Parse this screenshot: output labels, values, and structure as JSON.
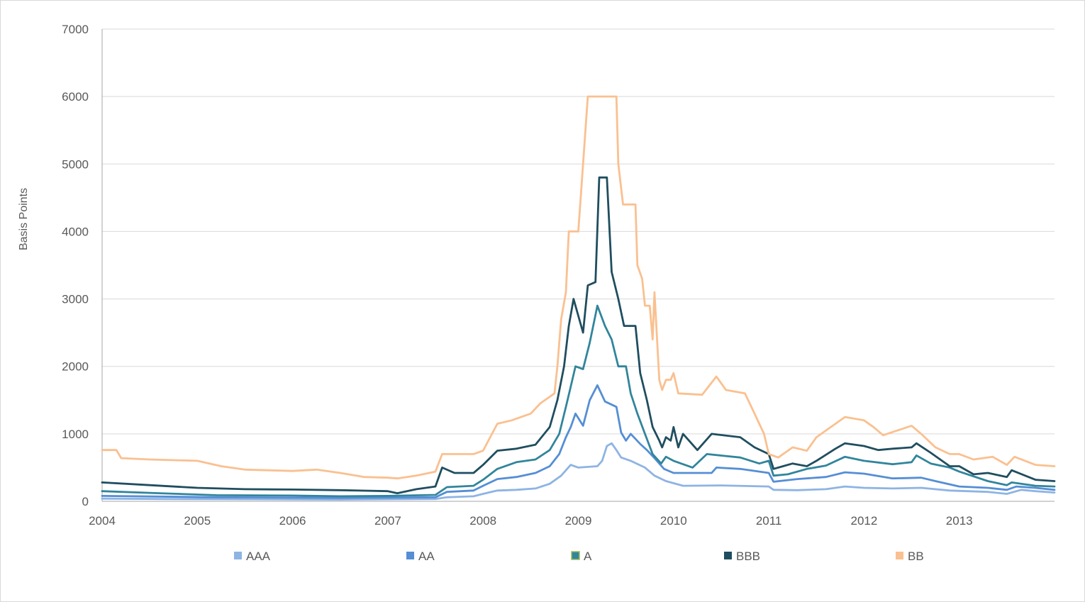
{
  "chart_data": {
    "type": "line",
    "title": "",
    "xlabel": "",
    "ylabel": "Basis Points",
    "xlim": [
      2004,
      2014
    ],
    "ylim": [
      0,
      7000
    ],
    "yticks": [
      0,
      1000,
      2000,
      3000,
      4000,
      5000,
      6000,
      7000
    ],
    "xtick_labels": [
      "2004",
      "2005",
      "2006",
      "2007",
      "2008",
      "2009",
      "2010",
      "2011",
      "2012",
      "2013"
    ],
    "grid": "horizontal",
    "legend_position": "bottom",
    "series": [
      {
        "name": "AAA",
        "color": "#8eb4e3",
        "points": [
          [
            2004.0,
            40
          ],
          [
            2004.6,
            35
          ],
          [
            2005.5,
            30
          ],
          [
            2006.5,
            25
          ],
          [
            2007.0,
            30
          ],
          [
            2007.5,
            35
          ],
          [
            2007.62,
            60
          ],
          [
            2007.9,
            75
          ],
          [
            2008.0,
            110
          ],
          [
            2008.15,
            160
          ],
          [
            2008.35,
            170
          ],
          [
            2008.55,
            190
          ],
          [
            2008.7,
            260
          ],
          [
            2008.82,
            380
          ],
          [
            2008.92,
            540
          ],
          [
            2009.0,
            500
          ],
          [
            2009.2,
            520
          ],
          [
            2009.25,
            600
          ],
          [
            2009.3,
            820
          ],
          [
            2009.35,
            860
          ],
          [
            2009.4,
            760
          ],
          [
            2009.45,
            650
          ],
          [
            2009.55,
            600
          ],
          [
            2009.7,
            500
          ],
          [
            2009.8,
            380
          ],
          [
            2009.92,
            300
          ],
          [
            2010.1,
            230
          ],
          [
            2010.5,
            235
          ],
          [
            2011.0,
            220
          ],
          [
            2011.05,
            170
          ],
          [
            2011.3,
            165
          ],
          [
            2011.6,
            180
          ],
          [
            2011.8,
            220
          ],
          [
            2012.0,
            200
          ],
          [
            2012.3,
            190
          ],
          [
            2012.6,
            200
          ],
          [
            2012.9,
            160
          ],
          [
            2013.3,
            140
          ],
          [
            2013.5,
            110
          ],
          [
            2013.65,
            170
          ],
          [
            2013.8,
            150
          ],
          [
            2014.0,
            130
          ]
        ]
      },
      {
        "name": "AA",
        "color": "#558ed5",
        "points": [
          [
            2004.0,
            80
          ],
          [
            2004.6,
            70
          ],
          [
            2005.2,
            60
          ],
          [
            2006.0,
            55
          ],
          [
            2006.5,
            50
          ],
          [
            2007.0,
            55
          ],
          [
            2007.5,
            60
          ],
          [
            2007.62,
            140
          ],
          [
            2007.9,
            160
          ],
          [
            2008.0,
            230
          ],
          [
            2008.15,
            330
          ],
          [
            2008.35,
            360
          ],
          [
            2008.55,
            420
          ],
          [
            2008.7,
            520
          ],
          [
            2008.8,
            700
          ],
          [
            2008.87,
            950
          ],
          [
            2008.92,
            1100
          ],
          [
            2008.97,
            1300
          ],
          [
            2009.05,
            1120
          ],
          [
            2009.12,
            1500
          ],
          [
            2009.2,
            1720
          ],
          [
            2009.28,
            1480
          ],
          [
            2009.4,
            1400
          ],
          [
            2009.45,
            1020
          ],
          [
            2009.5,
            900
          ],
          [
            2009.55,
            1000
          ],
          [
            2009.65,
            850
          ],
          [
            2009.72,
            760
          ],
          [
            2009.8,
            640
          ],
          [
            2009.9,
            480
          ],
          [
            2010.0,
            420
          ],
          [
            2010.4,
            420
          ],
          [
            2010.45,
            500
          ],
          [
            2010.7,
            480
          ],
          [
            2011.0,
            420
          ],
          [
            2011.05,
            290
          ],
          [
            2011.3,
            330
          ],
          [
            2011.6,
            360
          ],
          [
            2011.8,
            430
          ],
          [
            2012.0,
            410
          ],
          [
            2012.3,
            340
          ],
          [
            2012.6,
            350
          ],
          [
            2012.75,
            300
          ],
          [
            2013.0,
            220
          ],
          [
            2013.3,
            200
          ],
          [
            2013.5,
            170
          ],
          [
            2013.6,
            220
          ],
          [
            2013.8,
            200
          ],
          [
            2014.0,
            170
          ]
        ]
      },
      {
        "name": "A",
        "color": "#31859c",
        "points": [
          [
            2004.0,
            150
          ],
          [
            2004.6,
            120
          ],
          [
            2005.2,
            90
          ],
          [
            2006.0,
            85
          ],
          [
            2006.5,
            75
          ],
          [
            2007.0,
            80
          ],
          [
            2007.5,
            95
          ],
          [
            2007.62,
            210
          ],
          [
            2007.9,
            230
          ],
          [
            2008.0,
            320
          ],
          [
            2008.15,
            480
          ],
          [
            2008.35,
            580
          ],
          [
            2008.55,
            620
          ],
          [
            2008.7,
            760
          ],
          [
            2008.8,
            1000
          ],
          [
            2008.87,
            1400
          ],
          [
            2008.92,
            1700
          ],
          [
            2008.97,
            2000
          ],
          [
            2009.05,
            1960
          ],
          [
            2009.12,
            2350
          ],
          [
            2009.2,
            2900
          ],
          [
            2009.28,
            2600
          ],
          [
            2009.35,
            2400
          ],
          [
            2009.42,
            2000
          ],
          [
            2009.5,
            2000
          ],
          [
            2009.55,
            1600
          ],
          [
            2009.62,
            1300
          ],
          [
            2009.7,
            1000
          ],
          [
            2009.78,
            700
          ],
          [
            2009.87,
            560
          ],
          [
            2009.92,
            660
          ],
          [
            2010.0,
            600
          ],
          [
            2010.2,
            500
          ],
          [
            2010.35,
            700
          ],
          [
            2010.7,
            650
          ],
          [
            2010.9,
            560
          ],
          [
            2011.0,
            600
          ],
          [
            2011.05,
            380
          ],
          [
            2011.2,
            400
          ],
          [
            2011.4,
            480
          ],
          [
            2011.6,
            530
          ],
          [
            2011.8,
            660
          ],
          [
            2012.0,
            600
          ],
          [
            2012.3,
            550
          ],
          [
            2012.5,
            580
          ],
          [
            2012.55,
            680
          ],
          [
            2012.7,
            560
          ],
          [
            2012.9,
            500
          ],
          [
            2013.0,
            440
          ],
          [
            2013.3,
            300
          ],
          [
            2013.5,
            240
          ],
          [
            2013.55,
            280
          ],
          [
            2013.8,
            230
          ],
          [
            2014.0,
            220
          ]
        ]
      },
      {
        "name": "BBB",
        "color": "#1f4e5f",
        "points": [
          [
            2004.0,
            280
          ],
          [
            2004.5,
            240
          ],
          [
            2005.0,
            200
          ],
          [
            2005.5,
            180
          ],
          [
            2006.0,
            175
          ],
          [
            2006.5,
            165
          ],
          [
            2007.0,
            150
          ],
          [
            2007.1,
            120
          ],
          [
            2007.3,
            180
          ],
          [
            2007.5,
            220
          ],
          [
            2007.57,
            500
          ],
          [
            2007.7,
            420
          ],
          [
            2007.9,
            420
          ],
          [
            2008.0,
            540
          ],
          [
            2008.15,
            750
          ],
          [
            2008.35,
            780
          ],
          [
            2008.55,
            840
          ],
          [
            2008.7,
            1100
          ],
          [
            2008.78,
            1500
          ],
          [
            2008.85,
            2000
          ],
          [
            2008.9,
            2600
          ],
          [
            2008.95,
            3000
          ],
          [
            2009.05,
            2500
          ],
          [
            2009.1,
            3200
          ],
          [
            2009.18,
            3250
          ],
          [
            2009.22,
            4800
          ],
          [
            2009.3,
            4800
          ],
          [
            2009.35,
            3400
          ],
          [
            2009.42,
            3000
          ],
          [
            2009.48,
            2600
          ],
          [
            2009.6,
            2600
          ],
          [
            2009.65,
            1900
          ],
          [
            2009.72,
            1500
          ],
          [
            2009.78,
            1100
          ],
          [
            2009.85,
            900
          ],
          [
            2009.88,
            800
          ],
          [
            2009.92,
            950
          ],
          [
            2009.97,
            900
          ],
          [
            2010.0,
            1100
          ],
          [
            2010.05,
            800
          ],
          [
            2010.1,
            1000
          ],
          [
            2010.25,
            760
          ],
          [
            2010.4,
            1000
          ],
          [
            2010.7,
            950
          ],
          [
            2010.85,
            800
          ],
          [
            2011.0,
            700
          ],
          [
            2011.05,
            480
          ],
          [
            2011.15,
            520
          ],
          [
            2011.25,
            560
          ],
          [
            2011.4,
            520
          ],
          [
            2011.5,
            600
          ],
          [
            2011.7,
            780
          ],
          [
            2011.8,
            860
          ],
          [
            2012.0,
            820
          ],
          [
            2012.15,
            760
          ],
          [
            2012.3,
            780
          ],
          [
            2012.5,
            800
          ],
          [
            2012.55,
            860
          ],
          [
            2012.7,
            720
          ],
          [
            2012.8,
            620
          ],
          [
            2012.9,
            520
          ],
          [
            2013.0,
            520
          ],
          [
            2013.15,
            400
          ],
          [
            2013.3,
            420
          ],
          [
            2013.5,
            360
          ],
          [
            2013.55,
            460
          ],
          [
            2013.8,
            320
          ],
          [
            2014.0,
            300
          ]
        ]
      },
      {
        "name": "BB",
        "color": "#fac090",
        "points": [
          [
            2004.0,
            760
          ],
          [
            2004.15,
            760
          ],
          [
            2004.2,
            640
          ],
          [
            2004.5,
            620
          ],
          [
            2005.0,
            600
          ],
          [
            2005.25,
            520
          ],
          [
            2005.5,
            470
          ],
          [
            2006.0,
            450
          ],
          [
            2006.25,
            470
          ],
          [
            2006.5,
            420
          ],
          [
            2006.75,
            360
          ],
          [
            2007.0,
            350
          ],
          [
            2007.1,
            340
          ],
          [
            2007.3,
            380
          ],
          [
            2007.5,
            440
          ],
          [
            2007.57,
            700
          ],
          [
            2007.9,
            700
          ],
          [
            2008.0,
            750
          ],
          [
            2008.15,
            1150
          ],
          [
            2008.3,
            1200
          ],
          [
            2008.5,
            1300
          ],
          [
            2008.6,
            1450
          ],
          [
            2008.75,
            1600
          ],
          [
            2008.78,
            2000
          ],
          [
            2008.82,
            2700
          ],
          [
            2008.87,
            3100
          ],
          [
            2008.9,
            4000
          ],
          [
            2009.0,
            4000
          ],
          [
            2009.05,
            5000
          ],
          [
            2009.1,
            6000
          ],
          [
            2009.4,
            6000
          ],
          [
            2009.42,
            5000
          ],
          [
            2009.47,
            4400
          ],
          [
            2009.6,
            4400
          ],
          [
            2009.62,
            3500
          ],
          [
            2009.67,
            3300
          ],
          [
            2009.7,
            2900
          ],
          [
            2009.75,
            2900
          ],
          [
            2009.78,
            2400
          ],
          [
            2009.8,
            3100
          ],
          [
            2009.85,
            1800
          ],
          [
            2009.88,
            1650
          ],
          [
            2009.92,
            1800
          ],
          [
            2009.97,
            1800
          ],
          [
            2010.0,
            1900
          ],
          [
            2010.05,
            1600
          ],
          [
            2010.3,
            1580
          ],
          [
            2010.45,
            1850
          ],
          [
            2010.55,
            1650
          ],
          [
            2010.75,
            1600
          ],
          [
            2010.85,
            1300
          ],
          [
            2010.95,
            1000
          ],
          [
            2011.0,
            700
          ],
          [
            2011.1,
            650
          ],
          [
            2011.25,
            800
          ],
          [
            2011.4,
            750
          ],
          [
            2011.5,
            950
          ],
          [
            2011.7,
            1150
          ],
          [
            2011.8,
            1250
          ],
          [
            2012.0,
            1200
          ],
          [
            2012.1,
            1100
          ],
          [
            2012.2,
            980
          ],
          [
            2012.35,
            1050
          ],
          [
            2012.5,
            1120
          ],
          [
            2012.6,
            1000
          ],
          [
            2012.75,
            800
          ],
          [
            2012.9,
            700
          ],
          [
            2013.0,
            700
          ],
          [
            2013.15,
            620
          ],
          [
            2013.35,
            660
          ],
          [
            2013.5,
            540
          ],
          [
            2013.58,
            660
          ],
          [
            2013.8,
            540
          ],
          [
            2014.0,
            520
          ]
        ]
      }
    ]
  }
}
